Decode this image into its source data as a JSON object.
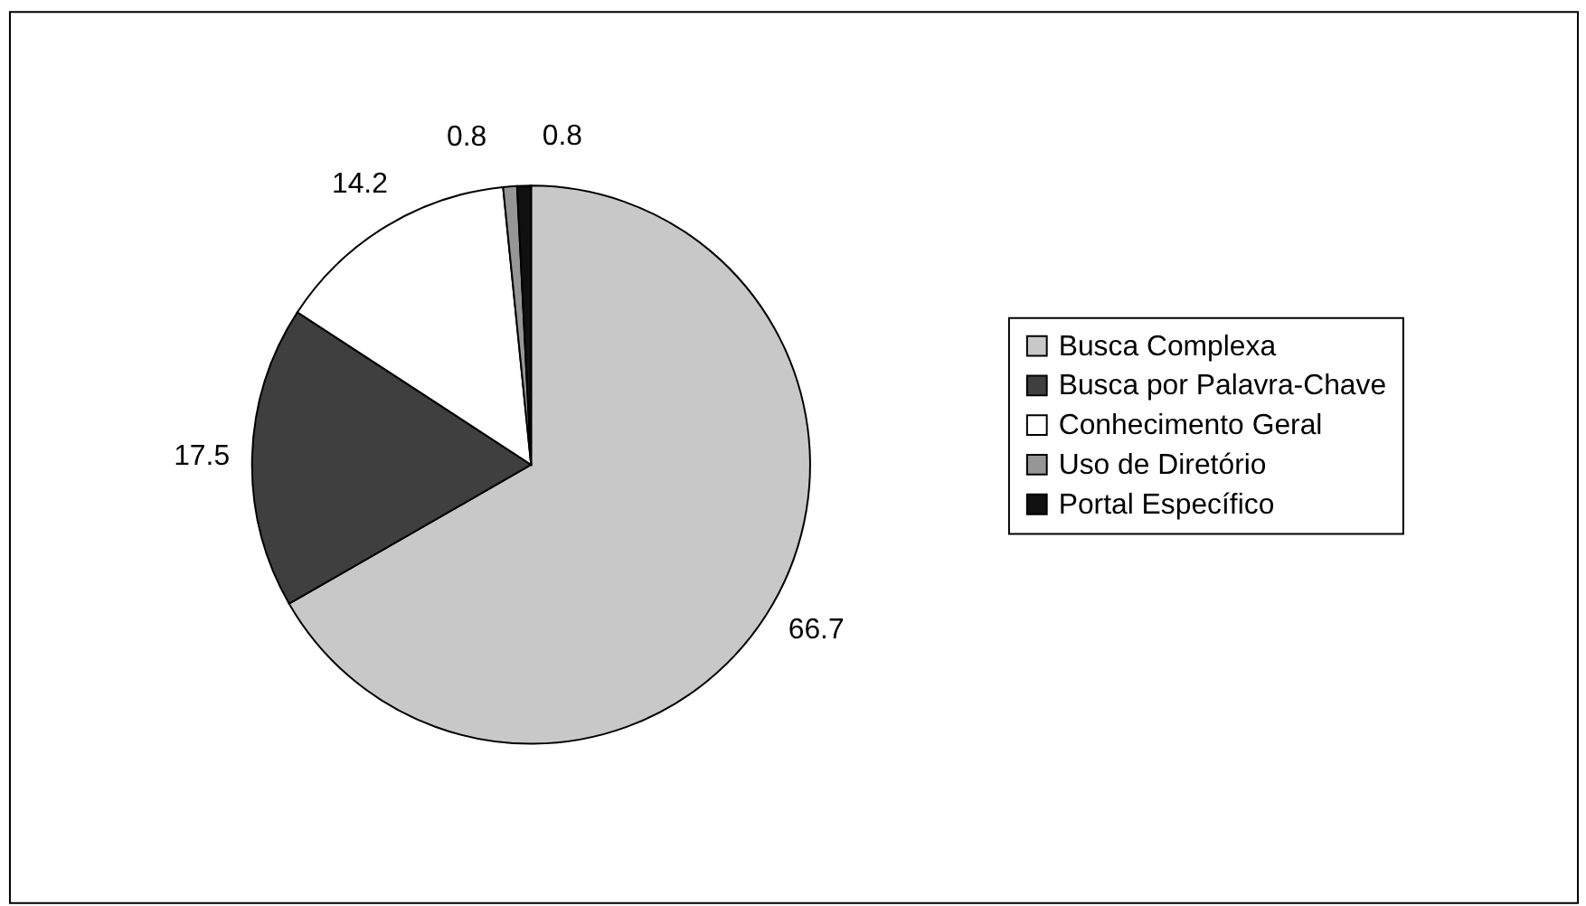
{
  "chart_data": {
    "type": "pie",
    "categories": [
      "Busca Complexa",
      "Busca por Palavra-Chave",
      "Conhecimento Geral",
      "Uso de Diretório",
      "Portal Específico"
    ],
    "values": [
      66.7,
      17.5,
      14.2,
      0.8,
      0.8
    ],
    "colors": [
      "#c8c8c8",
      "#3f3f3f",
      "#ffffff",
      "#969696",
      "#101010"
    ],
    "data_labels": true,
    "legend": "right"
  }
}
